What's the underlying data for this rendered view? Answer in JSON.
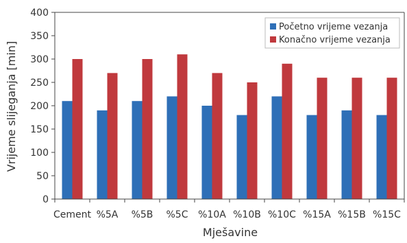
{
  "chart_data": {
    "type": "bar",
    "title": "",
    "xlabel": "Mješavine",
    "ylabel": "Vrijeme slijeganja [min]",
    "ylim": [
      0,
      400
    ],
    "yticks": [
      0,
      50,
      100,
      150,
      200,
      250,
      300,
      350,
      400
    ],
    "grid": false,
    "legend_position": "top-right",
    "categories": [
      "Cement",
      "%5A",
      "%5B",
      "%5C",
      "%10A",
      "%10B",
      "%10C",
      "%15A",
      "%15B",
      "%15C"
    ],
    "series": [
      {
        "name": "Početno vrijeme vezanja",
        "color": "#2e6fb7",
        "values": [
          210,
          190,
          210,
          220,
          200,
          180,
          220,
          180,
          190,
          180
        ]
      },
      {
        "name": "Konačno vrijeme vezanja",
        "color": "#c0393d",
        "values": [
          300,
          270,
          300,
          310,
          270,
          250,
          290,
          260,
          260,
          260
        ]
      }
    ]
  }
}
